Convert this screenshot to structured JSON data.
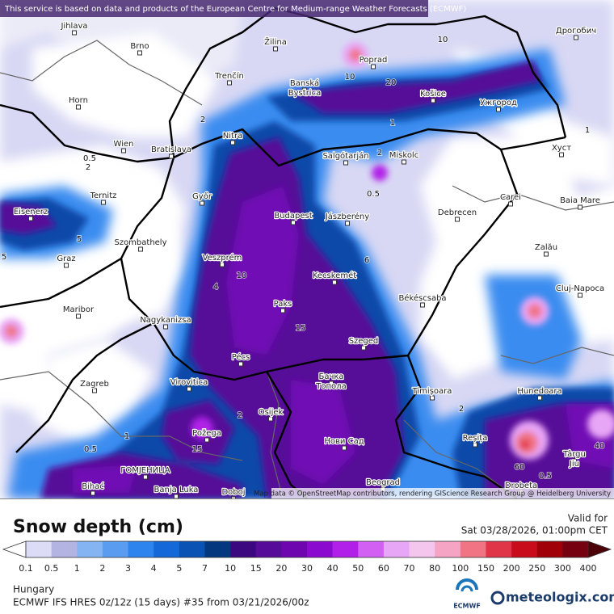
{
  "attribution": "This service is based on data and products of the European Centre for Medium-range Weather Forecasts (ECMWF)",
  "map_credit": "Map data © OpenStreetMap contributors, rendering GIScience Research Group @ Heidelberg University",
  "cities": [
    "Jihlava",
    "Brno",
    "Žilina",
    "Poprad",
    "Дрогобич",
    "Trenčín",
    "Banská",
    "Bystrica",
    "Košice",
    "Ужгород",
    "Horn",
    "Nitra",
    "Wien",
    "Bratislava",
    "Salgótarján",
    "Miskolc",
    "Хуст",
    "Ternitz",
    "Győr",
    "Eisenerz",
    "Budapest",
    "Jászberény",
    "Debrecen",
    "Carei",
    "Baia Mare",
    "Szombathely",
    "Graz",
    "Veszprém",
    "Zalău",
    "Kecskemét",
    "Maribor",
    "Paks",
    "Békéscsaba",
    "Cluj-Napoca",
    "Nagykanizsa",
    "Szeged",
    "Pécs",
    "Virovitica",
    "Бачка",
    "Топола",
    "Zagreb",
    "Timișoara",
    "Hunedoara",
    "Osijek",
    "Požega",
    "Нови Сад",
    "Reșița",
    "Târgu",
    "Jiu",
    "ГОМЈЕНИЦА",
    "Beograd",
    "Bihać",
    "Banja Luka",
    "Doboj",
    "Drobeta"
  ],
  "contour_labels": [
    "0.5",
    "2",
    "2",
    "10",
    "15",
    "6",
    "0.5",
    "2",
    "20",
    "1",
    "10",
    "5",
    "4",
    "2",
    "15",
    "1",
    "0.5",
    "40",
    "60",
    "2",
    "1",
    "10",
    "5",
    "0.5"
  ],
  "legend": {
    "title": "Snow depth (cm)",
    "ticks": [
      0.1,
      0.5,
      1,
      2,
      3,
      4,
      5,
      7,
      10,
      15,
      20,
      30,
      40,
      50,
      60,
      70,
      80,
      100,
      150,
      200,
      250,
      300,
      400
    ],
    "colors": [
      "#dcdcf6",
      "#b4b4e2",
      "#84b4f2",
      "#5a9cf0",
      "#2e84ee",
      "#1468d8",
      "#0a52b4",
      "#04387e",
      "#3c0880",
      "#560c98",
      "#6e06b0",
      "#8a0ad0",
      "#b020e8",
      "#d260f2",
      "#e8a6f6",
      "#f4c6ee",
      "#f6a4c4",
      "#f07484",
      "#e03448",
      "#c80c1c",
      "#a00008",
      "#760010"
    ],
    "under_color": "#ffffff",
    "over_color": "#4c0008"
  },
  "valid": {
    "label": "Valid for",
    "time": "Sat 03/28/2026, 01:00pm CET"
  },
  "region": "Hungary",
  "model": "ECMWF IFS HRES 0z/12z (15 days) #35 from  03/21/2026/00z",
  "logos": {
    "ecmwf": "ECMWF",
    "site": "meteologix.com"
  }
}
